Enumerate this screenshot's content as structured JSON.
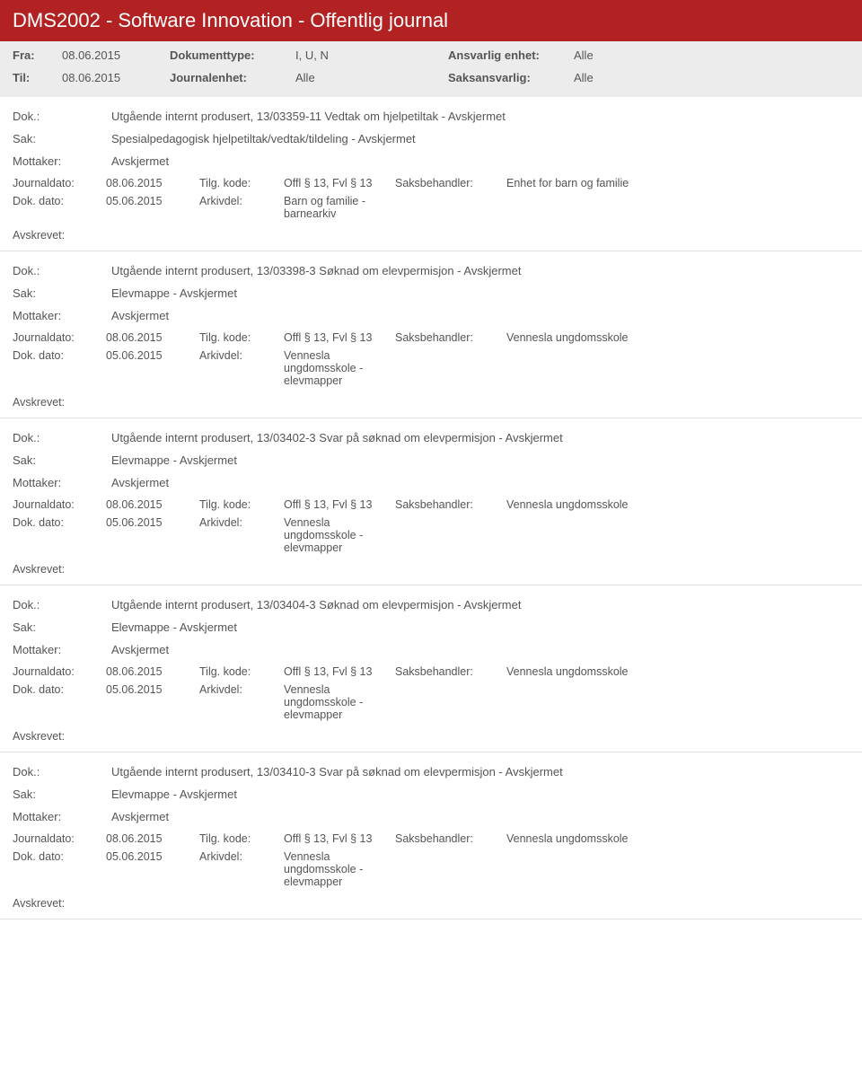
{
  "header": {
    "title": "DMS2002 - Software Innovation - Offentlig journal"
  },
  "meta": {
    "fra_label": "Fra:",
    "fra_value": "08.06.2015",
    "til_label": "Til:",
    "til_value": "08.06.2015",
    "doktype_label": "Dokumenttype:",
    "doktype_value": "I, U, N",
    "journalenhet_label": "Journalenhet:",
    "journalenhet_value": "Alle",
    "ansvarlig_label": "Ansvarlig enhet:",
    "ansvarlig_value": "Alle",
    "saksansvarlig_label": "Saksansvarlig:",
    "saksansvarlig_value": "Alle"
  },
  "labels": {
    "dok": "Dok.:",
    "sak": "Sak:",
    "mottaker": "Mottaker:",
    "journaldato": "Journaldato:",
    "tilgkode": "Tilg. kode:",
    "saksbehandler": "Saksbehandler:",
    "dokdato": "Dok. dato:",
    "arkivdel": "Arkivdel:",
    "avskrevet": "Avskrevet:"
  },
  "entries": [
    {
      "dok": "Utgående internt produsert, 13/03359-11 Vedtak om hjelpetiltak - Avskjermet",
      "sak": "Spesialpedagogisk hjelpetiltak/vedtak/tildeling - Avskjermet",
      "mottaker": "Avskjermet",
      "journaldato": "08.06.2015",
      "tilgkode": "Offl § 13, Fvl § 13",
      "saksbehandler": "Enhet for barn og familie",
      "dokdato": "05.06.2015",
      "arkivdel": "Barn og familie - barnearkiv"
    },
    {
      "dok": "Utgående internt produsert, 13/03398-3 Søknad om elevpermisjon - Avskjermet",
      "sak": "Elevmappe - Avskjermet",
      "mottaker": "Avskjermet",
      "journaldato": "08.06.2015",
      "tilgkode": "Offl § 13, Fvl § 13",
      "saksbehandler": "Vennesla ungdomsskole",
      "dokdato": "05.06.2015",
      "arkivdel": "Vennesla ungdomsskole - elevmapper"
    },
    {
      "dok": "Utgående internt produsert, 13/03402-3 Svar på søknad om elevpermisjon - Avskjermet",
      "sak": "Elevmappe - Avskjermet",
      "mottaker": "Avskjermet",
      "journaldato": "08.06.2015",
      "tilgkode": "Offl § 13, Fvl § 13",
      "saksbehandler": "Vennesla ungdomsskole",
      "dokdato": "05.06.2015",
      "arkivdel": "Vennesla ungdomsskole - elevmapper"
    },
    {
      "dok": "Utgående internt produsert, 13/03404-3 Søknad om elevpermisjon - Avskjermet",
      "sak": "Elevmappe - Avskjermet",
      "mottaker": "Avskjermet",
      "journaldato": "08.06.2015",
      "tilgkode": "Offl § 13, Fvl § 13",
      "saksbehandler": "Vennesla ungdomsskole",
      "dokdato": "05.06.2015",
      "arkivdel": "Vennesla ungdomsskole - elevmapper"
    },
    {
      "dok": "Utgående internt produsert, 13/03410-3 Svar på søknad om elevpermisjon - Avskjermet",
      "sak": "Elevmappe - Avskjermet",
      "mottaker": "Avskjermet",
      "journaldato": "08.06.2015",
      "tilgkode": "Offl § 13, Fvl § 13",
      "saksbehandler": "Vennesla ungdomsskole",
      "dokdato": "05.06.2015",
      "arkivdel": "Vennesla ungdomsskole - elevmapper"
    }
  ]
}
